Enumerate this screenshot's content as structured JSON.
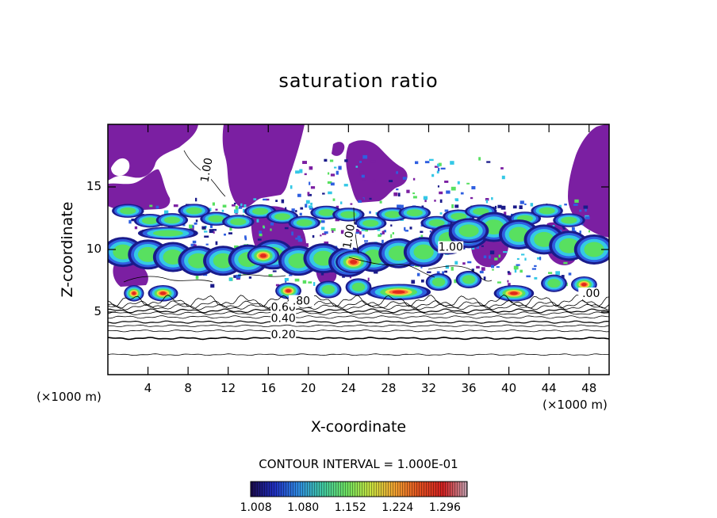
{
  "title": "saturation ratio",
  "chart_data": {
    "type": "heatmap",
    "title": "saturation ratio",
    "xlabel": "X-coordinate",
    "ylabel": "Z-coordinate",
    "x_unit_left": "(×1000 m)",
    "x_unit_right": "(×1000 m)",
    "xlim": [
      0,
      50
    ],
    "ylim": [
      0,
      20
    ],
    "x_ticks": [
      4,
      8,
      12,
      16,
      20,
      24,
      28,
      32,
      36,
      40,
      44,
      48
    ],
    "x_tick_labels": [
      "4",
      "8",
      "12",
      "16",
      "20",
      "24",
      "28",
      "32",
      "36",
      "40",
      "44",
      "48"
    ],
    "y_ticks": [
      5,
      10,
      15
    ],
    "y_tick_labels": [
      "5",
      "10",
      "15"
    ],
    "contour_labels": [
      {
        "text": "0.20",
        "x": 17.5,
        "y": 2.9
      },
      {
        "text": "0.40",
        "x": 17.5,
        "y": 4.2
      },
      {
        "text": "0.60",
        "x": 17.5,
        "y": 5.1
      },
      {
        "text": ".80",
        "x": 19.3,
        "y": 5.6
      },
      {
        "text": "1.00",
        "x": 10.2,
        "y": 16.3
      },
      {
        "text": "1.00",
        "x": 24.4,
        "y": 11.0
      },
      {
        "text": "1.00",
        "x": 34.2,
        "y": 9.9
      },
      {
        "text": ".00",
        "x": 48.2,
        "y": 6.2
      }
    ],
    "contour_interval_text": "CONTOUR INTERVAL = 1.000E-01",
    "colorbar": {
      "tick_labels": [
        "1.008",
        "1.080",
        "1.152",
        "1.224",
        "1.296"
      ],
      "min": 1.0,
      "max": 1.33,
      "colors": [
        "#1a0a4a",
        "#1f2fc0",
        "#2f8be0",
        "#40c8a0",
        "#6ee060",
        "#c8e040",
        "#f0a030",
        "#e05020",
        "#d02020",
        "#c0a0b0"
      ]
    },
    "colors": {
      "subsaturated_fill": "#7b1fa2",
      "core": "#e02a1a",
      "hot": "#ff7a3a",
      "warm": "#e8e040",
      "green": "#58e060",
      "cyan": "#34c8e6",
      "blue": "#2f5fe0",
      "deep": "#1a1a8a"
    }
  },
  "contour_interval": "CONTOUR INTERVAL = 1.000E-01"
}
